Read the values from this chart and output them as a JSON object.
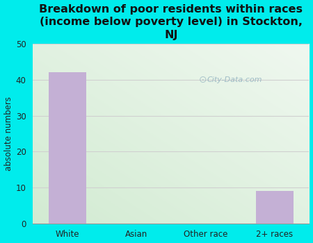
{
  "title": "Breakdown of poor residents within races\n(income below poverty level) in Stockton,\nNJ",
  "categories": [
    "White",
    "Asian",
    "Other race",
    "2+ races"
  ],
  "values": [
    42,
    0,
    0,
    9
  ],
  "bar_color": "#c4b0d5",
  "ylabel": "absolute numbers",
  "ylim": [
    0,
    50
  ],
  "yticks": [
    0,
    10,
    20,
    30,
    40,
    50
  ],
  "background_outer": "#00ecec",
  "background_inner_topleft": "#e8f5e8",
  "background_inner_topright": "#f0f8f8",
  "background_inner_bottomleft": "#d5ecd5",
  "background_inner_bottomright": "#e8f4f4",
  "title_fontsize": 11.5,
  "axis_label_fontsize": 8.5,
  "tick_fontsize": 8.5,
  "watermark": "City-Data.com",
  "grid_color": "#d0d0d0"
}
